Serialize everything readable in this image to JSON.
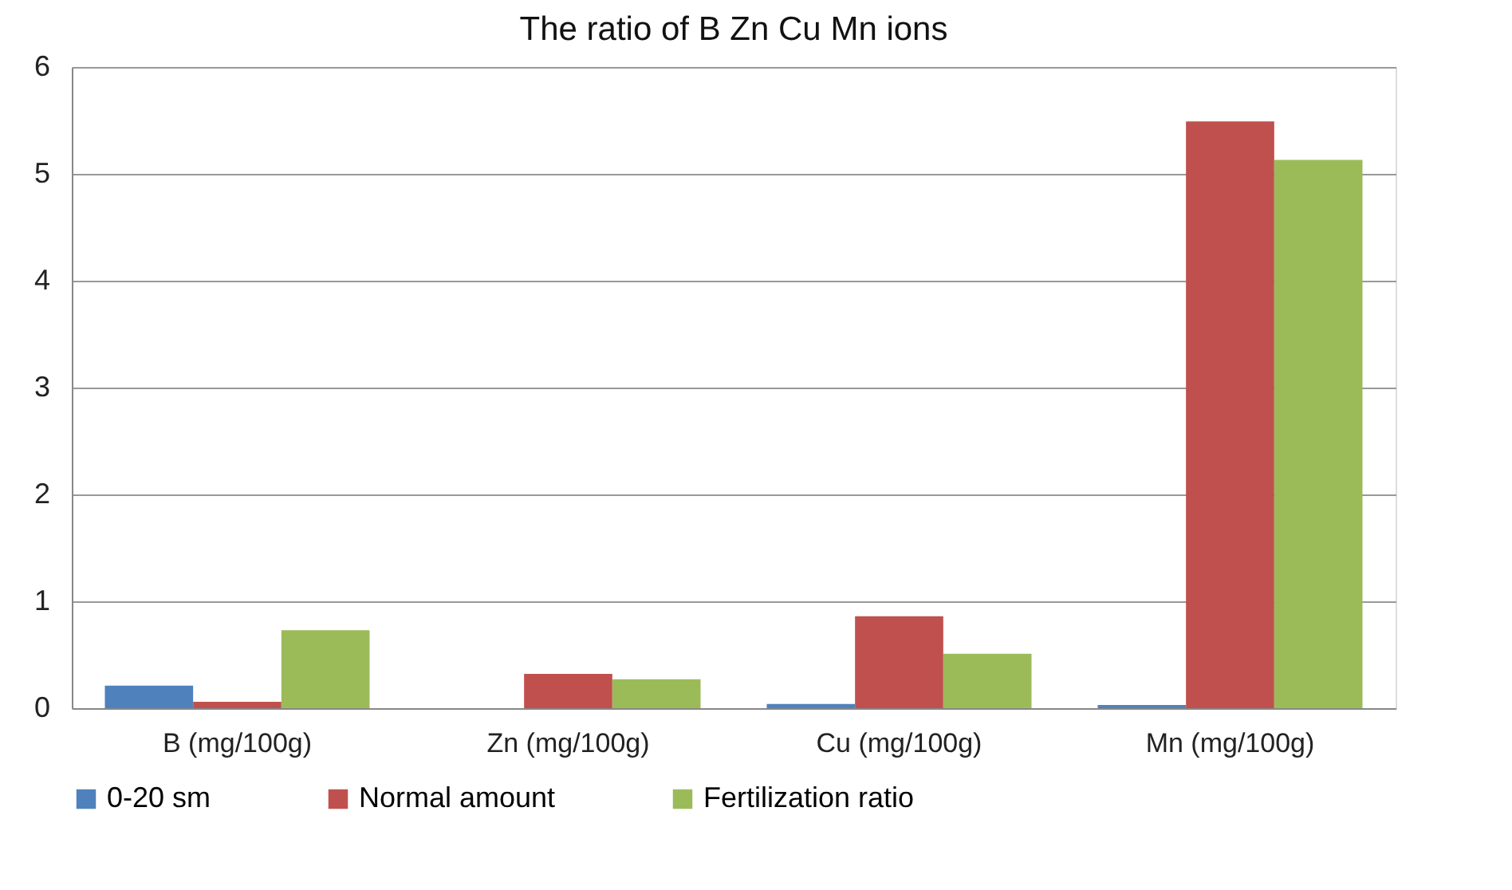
{
  "chart_data": {
    "type": "bar",
    "title": "The ratio of B Zn Cu Mn ions",
    "categories": [
      "B (mg/100g)",
      "Zn (mg/100g)",
      "Cu (mg/100g)",
      "Mn (mg/100g)"
    ],
    "series": [
      {
        "name": "0-20 sm",
        "color": "#4f81bd",
        "values": [
          0.21,
          0,
          0.04,
          0.03
        ]
      },
      {
        "name": "Normal amount",
        "color": "#c0504d",
        "values": [
          0.06,
          0.32,
          0.86,
          5.49
        ]
      },
      {
        "name": "Fertilization ratio",
        "color": "#9bbb59",
        "values": [
          0.73,
          0.27,
          0.51,
          5.13
        ]
      }
    ],
    "ylim": [
      0,
      6
    ],
    "yticks": [
      0,
      1,
      2,
      3,
      4,
      5,
      6
    ],
    "grid": "y",
    "legend": "bottom"
  }
}
